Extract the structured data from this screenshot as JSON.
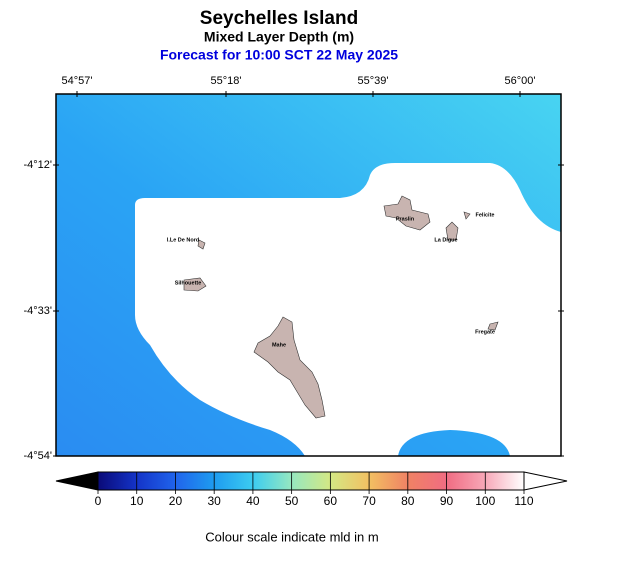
{
  "header": {
    "title": "Seychelles Island",
    "subtitle": "Mixed Layer Depth (m)",
    "forecast": "Forecast for  10:00 SCT 22 May 2025"
  },
  "map": {
    "lon_ticks": [
      "54°57'",
      "55°18'",
      "55°39'",
      "56°00'"
    ],
    "lat_ticks": [
      "-4°12'",
      "-4°33'",
      "-4°54'"
    ],
    "places": [
      "I.Le De Nord",
      "Silhouette",
      "Mahe",
      "Praslin",
      "La Digue",
      "Felicite",
      "Fregate"
    ]
  },
  "colorbar": {
    "lim": [
      0,
      110
    ],
    "ticks": [
      0,
      10,
      20,
      30,
      40,
      50,
      60,
      70,
      80,
      90,
      100,
      110
    ],
    "colors": [
      "#0a0a78",
      "#1434c8",
      "#2064ec",
      "#1e9cf0",
      "#3cccf0",
      "#96e8c0",
      "#d4e884",
      "#f2c062",
      "#f08264",
      "#f06c82",
      "#f8a8b8",
      "#ffffff"
    ],
    "caption": "Colour scale indicate mld in m"
  }
}
